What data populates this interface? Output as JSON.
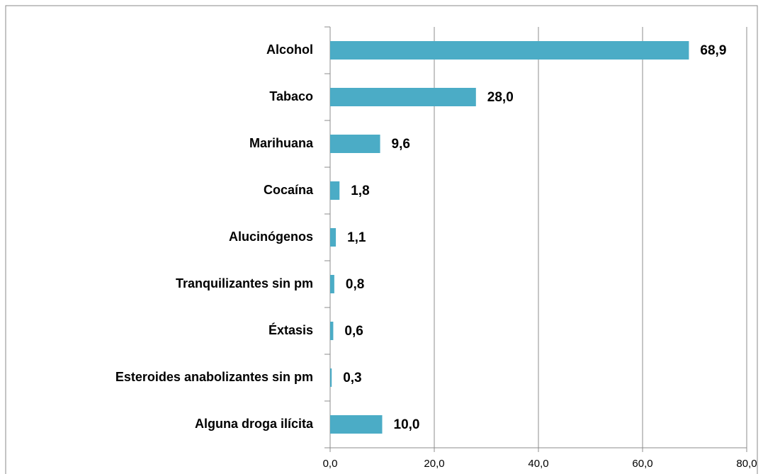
{
  "chart_data": {
    "type": "bar",
    "orientation": "horizontal",
    "categories": [
      "Alcohol",
      "Tabaco",
      "Marihuana",
      "Cocaína",
      "Alucinógenos",
      "Tranquilizantes sin pm",
      "Éxtasis",
      "Esteroides anabolizantes sin pm",
      "Alguna droga ilícita"
    ],
    "values": [
      68.9,
      28.0,
      9.6,
      1.8,
      1.1,
      0.8,
      0.6,
      0.3,
      10.0
    ],
    "value_labels": [
      "68,9",
      "28,0",
      "9,6",
      "1,8",
      "1,1",
      "0,8",
      "0,6",
      "0,3",
      "10,0"
    ],
    "color": "#4bacc6",
    "xlim": [
      0,
      80
    ],
    "xticks": [
      {
        "value": 0,
        "label": "0,0"
      },
      {
        "value": 20,
        "label": "20,0"
      },
      {
        "value": 40,
        "label": "40,0"
      },
      {
        "value": 60,
        "label": "60,0"
      },
      {
        "value": 80,
        "label": "80,0"
      }
    ],
    "grid": true
  }
}
